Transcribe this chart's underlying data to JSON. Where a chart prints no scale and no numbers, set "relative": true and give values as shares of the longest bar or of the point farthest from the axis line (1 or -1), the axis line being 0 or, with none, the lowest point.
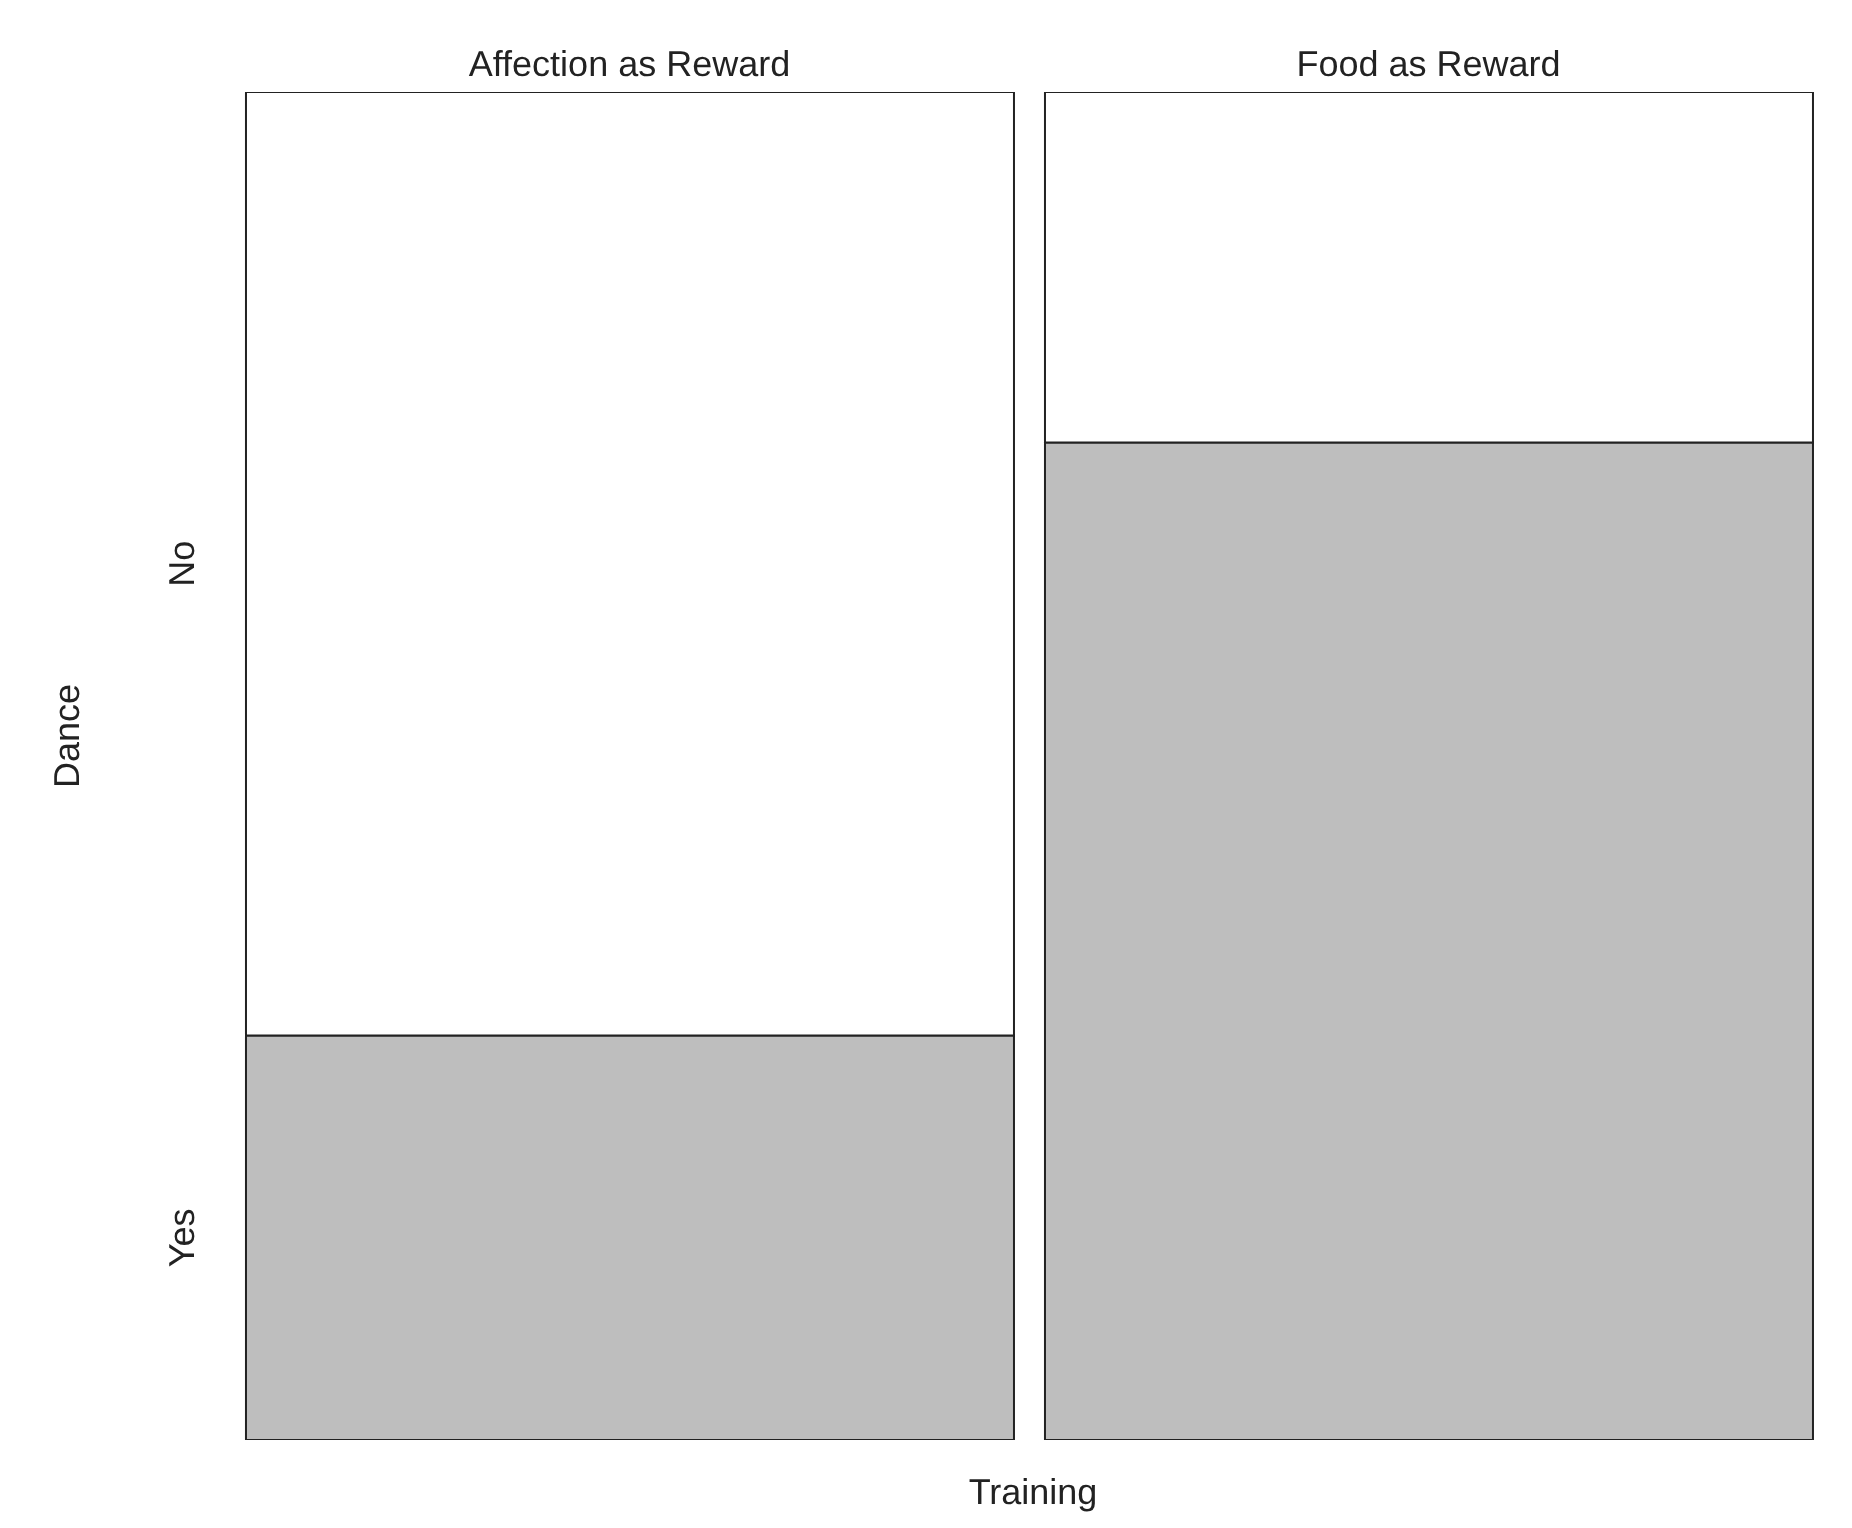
{
  "chart_data": {
    "type": "bar",
    "stacked": true,
    "relative": true,
    "xlabel": "Training",
    "ylabel": "Dance",
    "categories": [
      "Affection as Reward",
      "Food as Reward"
    ],
    "series": [
      {
        "name": "Yes",
        "color": "#bebebe",
        "values": [
          0.3,
          0.74
        ]
      },
      {
        "name": "No",
        "color": "#ffffff",
        "values": [
          0.7,
          0.26
        ]
      }
    ],
    "legend": false,
    "grid": false
  }
}
